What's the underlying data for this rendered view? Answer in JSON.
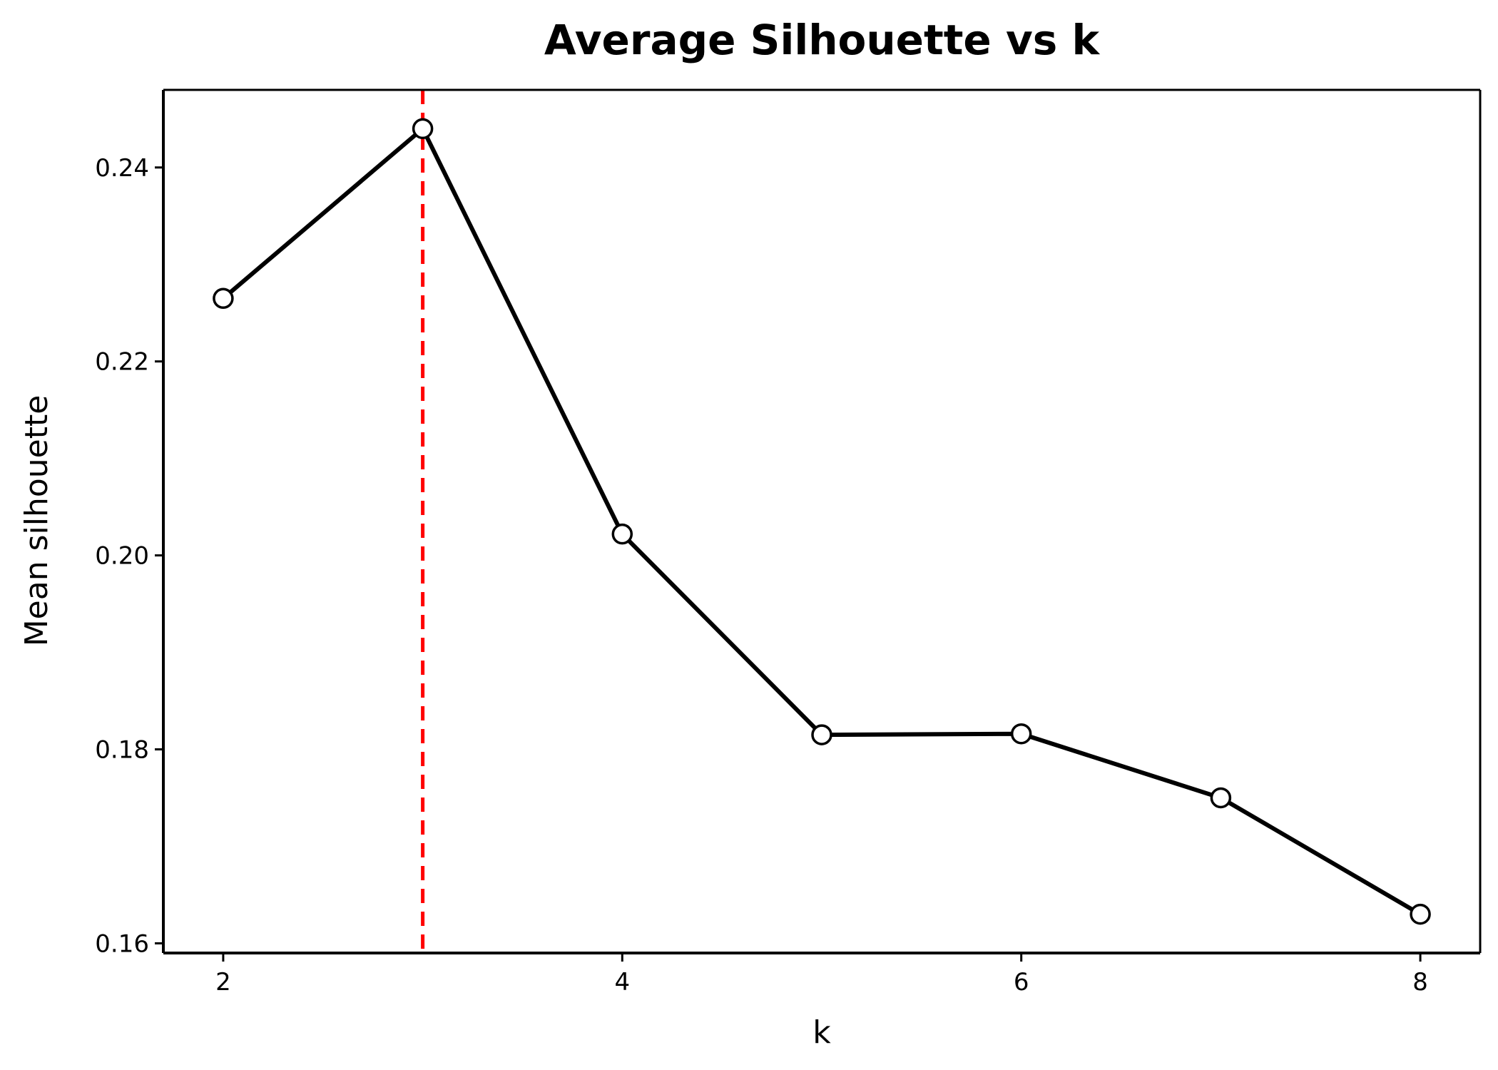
{
  "chart_data": {
    "type": "line",
    "title": "Average Silhouette vs k",
    "xlabel": "k",
    "ylabel": "Mean silhouette",
    "x": [
      2,
      3,
      4,
      5,
      6,
      7,
      8
    ],
    "series": [
      {
        "name": "Mean silhouette",
        "values": [
          0.2265,
          0.244,
          0.2022,
          0.1815,
          0.1816,
          0.175,
          0.163
        ]
      }
    ],
    "xlim": [
      1.7,
      8.3
    ],
    "ylim": [
      0.159,
      0.248
    ],
    "xticks": [
      2,
      4,
      6,
      8
    ],
    "xtick_labels": [
      "2",
      "4",
      "6",
      "8"
    ],
    "yticks": [
      0.16,
      0.18,
      0.2,
      0.22,
      0.24
    ],
    "ytick_labels": [
      "0.16",
      "0.18",
      "0.20",
      "0.22",
      "0.24"
    ],
    "reference_line": {
      "axis": "x",
      "value": 3,
      "style": "dashed"
    },
    "grid": false,
    "legend": "none"
  },
  "colors": {
    "line": "#000000",
    "marker_fill": "#ffffff",
    "marker_edge": "#000000",
    "reference_line": "#ff0000"
  }
}
